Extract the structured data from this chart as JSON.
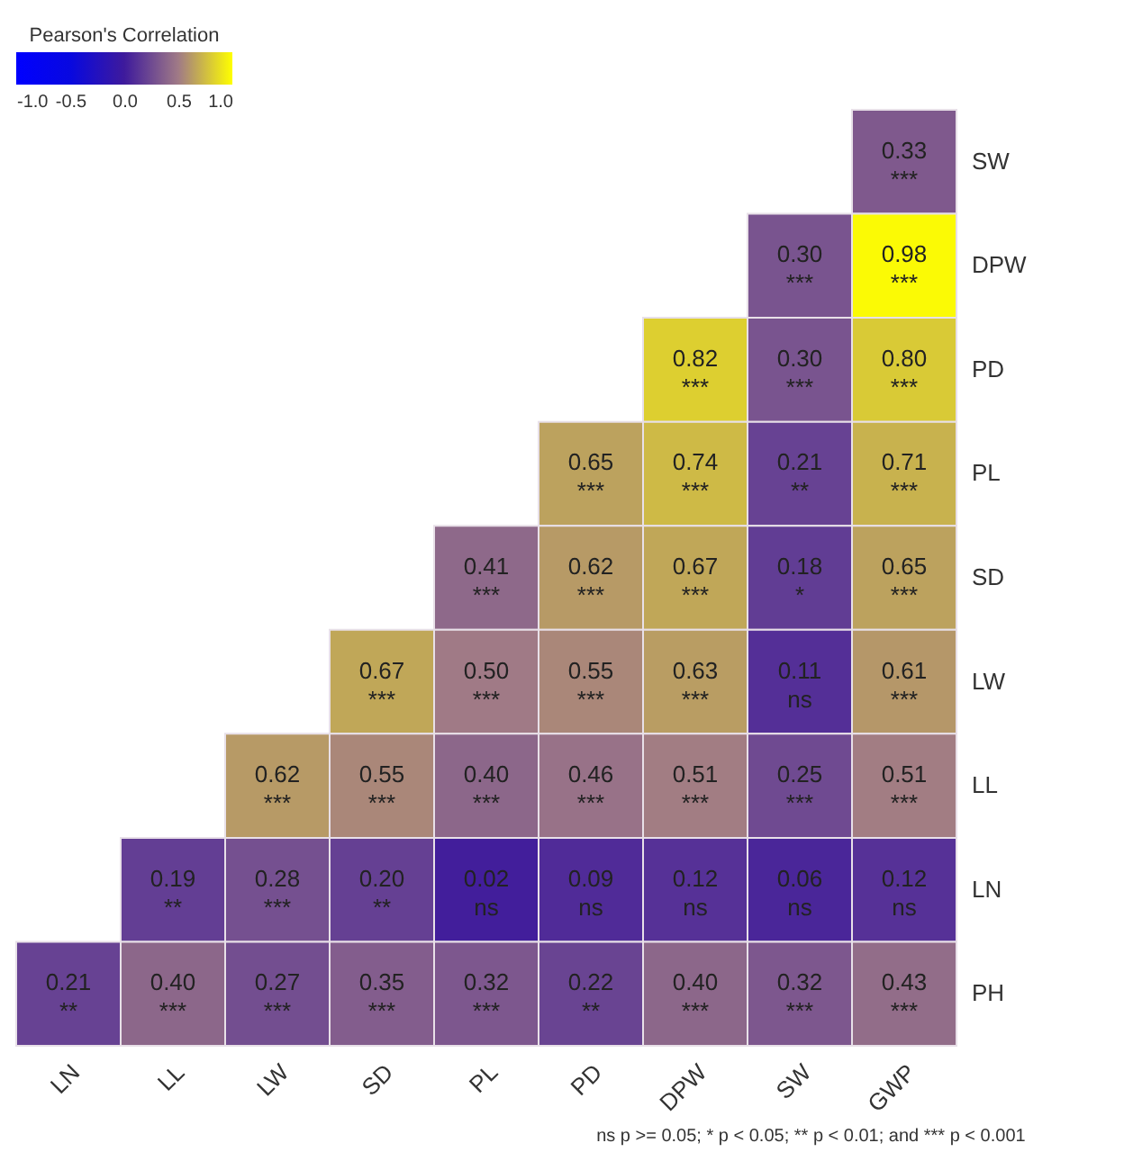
{
  "chart_data": {
    "type": "heatmap",
    "legend_title": "Pearson's Correlation",
    "annotations": [
      "ns p >= 0.05; * p < 0.05; ** p < 0.01; and *** p < 0.001"
    ],
    "categories": [
      "LN",
      "LL",
      "LW",
      "SD",
      "PL",
      "PD",
      "DPW",
      "SW",
      "GWP"
    ],
    "y_categories": [
      "SW",
      "DPW",
      "PD",
      "PL",
      "SD",
      "LW",
      "LL",
      "LN",
      "PH"
    ],
    "cells": [
      [
        null,
        null,
        null,
        null,
        null,
        null,
        null,
        null,
        0.33
      ],
      [
        null,
        null,
        null,
        null,
        null,
        null,
        null,
        0.3,
        0.98
      ],
      [
        null,
        null,
        null,
        null,
        null,
        null,
        0.82,
        0.3,
        0.8
      ],
      [
        null,
        null,
        null,
        null,
        null,
        0.65,
        0.74,
        0.21,
        0.71
      ],
      [
        null,
        null,
        null,
        null,
        0.41,
        0.62,
        0.67,
        0.18,
        0.65
      ],
      [
        null,
        null,
        null,
        0.67,
        0.5,
        0.55,
        0.63,
        0.11,
        0.61
      ],
      [
        null,
        null,
        0.62,
        0.55,
        0.4,
        0.46,
        0.51,
        0.25,
        0.51
      ],
      [
        null,
        0.19,
        0.28,
        0.2,
        0.02,
        0.09,
        0.12,
        0.06,
        0.12
      ],
      [
        0.21,
        0.4,
        0.27,
        0.35,
        0.32,
        0.22,
        0.4,
        0.32,
        0.43
      ]
    ],
    "cell_labels": [
      [
        null,
        null,
        null,
        null,
        null,
        null,
        null,
        null,
        "0.33\n***"
      ],
      [
        null,
        null,
        null,
        null,
        null,
        null,
        null,
        "0.30\n***",
        "0.98\n***"
      ],
      [
        null,
        null,
        null,
        null,
        null,
        null,
        "0.82\n***",
        "0.30\n***",
        "0.80\n***"
      ],
      [
        null,
        null,
        null,
        null,
        null,
        "0.65\n***",
        "0.74\n***",
        "0.21\n**",
        "0.71\n***"
      ],
      [
        null,
        null,
        null,
        null,
        "0.41\n***",
        "0.62\n***",
        "0.67\n***",
        "0.18\n*",
        "0.65\n***"
      ],
      [
        null,
        null,
        null,
        "0.67\n***",
        "0.50\n***",
        "0.55\n***",
        "0.63\n***",
        "0.11\nns",
        "0.61\n***"
      ],
      [
        null,
        null,
        "0.62\n***",
        "0.55\n***",
        "0.40\n***",
        "0.46\n***",
        "0.51\n***",
        "0.25\n***",
        "0.51\n***"
      ],
      [
        null,
        "0.19\n**",
        "0.28\n***",
        "0.20\n**",
        "0.02\nns",
        "0.09\nns",
        "0.12\nns",
        "0.06\nns",
        "0.12\nns"
      ],
      [
        "0.21\n**",
        "0.40\n***",
        "0.27\n***",
        "0.35\n***",
        "0.32\n***",
        "0.22\n**",
        "0.40\n***",
        "0.32\n***",
        "0.43\n***"
      ]
    ],
    "clim": [
      -1,
      1
    ],
    "cticks": [
      {
        "value": -1,
        "label": "-1.0"
      },
      {
        "value": -0.5,
        "label": "-0.5"
      },
      {
        "value": 0,
        "label": "0.0"
      },
      {
        "value": 0.5,
        "label": "0.5"
      },
      {
        "value": 1,
        "label": "1.0"
      }
    ]
  }
}
